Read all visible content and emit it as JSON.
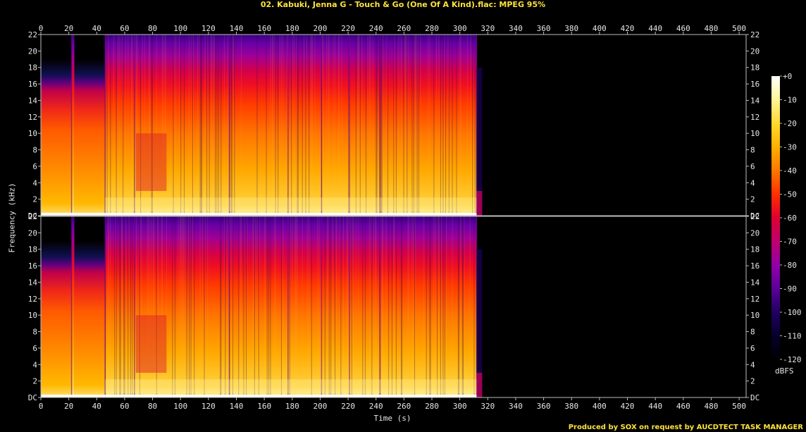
{
  "chart_data": {
    "type": "heatmap",
    "title": "02. Kabuki, Jenna G - Touch & Go (One Of A Kind).flac: MPEG 95%",
    "xlabel": "Time (s)",
    "ylabel": "Frequency (kHz)",
    "xlim": [
      0,
      505
    ],
    "ylim": [
      0,
      22
    ],
    "x_ticks": [
      "0",
      "20",
      "40",
      "60",
      "80",
      "100",
      "120",
      "140",
      "160",
      "180",
      "200",
      "220",
      "240",
      "260",
      "280",
      "300",
      "320",
      "340",
      "360",
      "380",
      "400",
      "420",
      "440",
      "460",
      "480",
      "500"
    ],
    "y_ticks": [
      "DC",
      "2",
      "4",
      "6",
      "8",
      "10",
      "12",
      "14",
      "16",
      "18",
      "20",
      "22"
    ],
    "channels": [
      "upper channel",
      "lower channel"
    ],
    "audio_end_s": 312,
    "energy_profile_kHz_cutoff": [
      {
        "t_start": 0,
        "t_end": 22,
        "cutoff_kHz": 19
      },
      {
        "t_start": 22,
        "t_end": 24,
        "cutoff_kHz": 22
      },
      {
        "t_start": 24,
        "t_end": 46,
        "cutoff_kHz": 19
      },
      {
        "t_start": 46,
        "t_end": 312,
        "cutoff_kHz": 22
      }
    ],
    "colorbar": {
      "label": "dBFS",
      "ticks": [
        "+0",
        "-10",
        "-20",
        "-30",
        "-40",
        "-50",
        "-60",
        "-70",
        "-80",
        "-90",
        "-100",
        "-110",
        "-120"
      ],
      "range": [
        0,
        -120
      ],
      "colors": [
        "#ffffff",
        "#fff79a",
        "#ffd82a",
        "#ffb000",
        "#ff7a00",
        "#ff2d00",
        "#e00030",
        "#c0006a",
        "#9000a8",
        "#5a0098",
        "#220063",
        "#05002a",
        "#000000"
      ]
    },
    "footer": "Produced by SOX on request by AUCDTECT TASK MANAGER"
  }
}
